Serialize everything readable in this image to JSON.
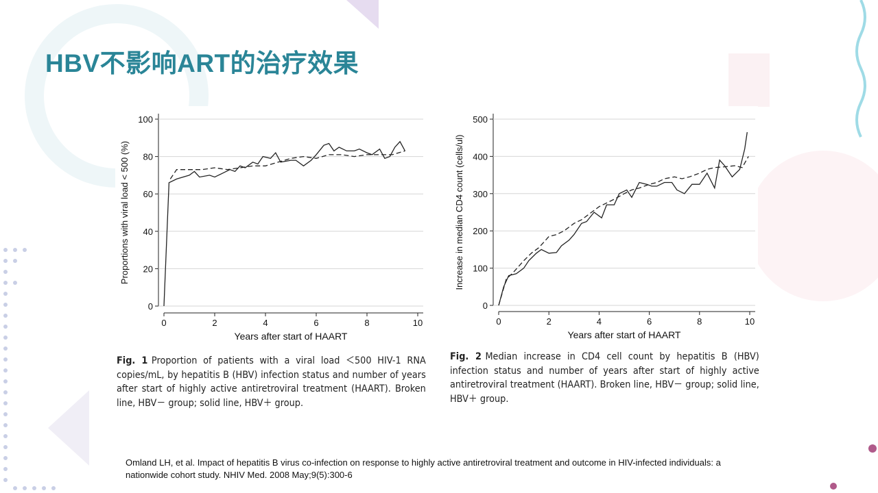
{
  "slide": {
    "title": "HBV不影响ART的治疗效果",
    "reference": "Omland LH, et al. Impact of hepatitis B virus co-infection on response to highly active antiretroviral treatment and outcome in HIV-infected individuals: a nationwide cohort study. NHIV Med. 2008 May;9(5):300-6"
  },
  "chart_data": [
    {
      "type": "line",
      "caption_label": "Fig. 1",
      "caption": "Proportion of patients with a viral load ＜500 HIV-1 RNA copies/mL, by hepatitis B (HBV) infection status and number of years after start of highly active antiretroviral treatment (HAART). Broken line, HBV－ group; solid line, HBV＋ group.",
      "x_label": "Years after start of HAART",
      "y_label": "Proportions with viral load < 500 (%)",
      "xlim": [
        0,
        10
      ],
      "xticks": [
        0,
        2,
        4,
        6,
        8,
        10
      ],
      "ylim": [
        0,
        100
      ],
      "yticks": [
        0,
        20,
        40,
        60,
        80,
        100
      ],
      "series": [
        {
          "color": "#222222",
          "line_style": "solid",
          "x": [
            0,
            0.2,
            0.5,
            1,
            1.2,
            1.4,
            1.8,
            2,
            2.3,
            2.6,
            2.8,
            3,
            3.2,
            3.5,
            3.7,
            3.9,
            4.2,
            4.4,
            4.6,
            5,
            5.2,
            5.5,
            5.8,
            6,
            6.3,
            6.5,
            6.7,
            6.9,
            7.2,
            7.5,
            7.7,
            8,
            8.2,
            8.5,
            8.7,
            8.9,
            9.1,
            9.3,
            9.5
          ],
          "values": [
            0,
            66,
            68,
            70,
            72,
            69,
            70,
            69,
            71,
            73,
            72,
            75,
            74,
            77,
            76,
            80,
            79,
            82,
            77,
            78,
            78,
            75,
            78,
            81,
            86,
            87,
            83,
            85,
            83,
            83,
            84,
            82,
            81,
            84,
            79,
            80,
            85,
            88,
            83
          ]
        },
        {
          "color": "#222222",
          "line_style": "dashed",
          "x": [
            0.25,
            0.5,
            1,
            1.5,
            2,
            2.5,
            3,
            3.5,
            4,
            4.5,
            5,
            5.5,
            6,
            6.5,
            7,
            7.5,
            8,
            8.5,
            9,
            9.5
          ],
          "values": [
            68,
            73,
            73,
            73,
            74,
            73,
            74,
            75,
            75,
            77,
            79,
            80,
            79,
            81,
            81,
            80,
            81,
            81,
            81,
            83
          ]
        }
      ]
    },
    {
      "type": "line",
      "caption_label": "Fig. 2",
      "caption": "Median increase in CD4 cell count by hepatitis B (HBV) infection status and number of years after start of highly active antiretroviral treatment (HAART). Broken line, HBV－ group; solid line, HBV＋ group.",
      "x_label": "Years after start of HAART",
      "y_label": "Increase in median CD4 count (cells/ul)",
      "xlim": [
        0,
        10
      ],
      "xticks": [
        0,
        2,
        4,
        6,
        8,
        10
      ],
      "ylim": [
        0,
        500
      ],
      "yticks": [
        0,
        100,
        200,
        300,
        400,
        500
      ],
      "series": [
        {
          "color": "#222222",
          "line_style": "solid",
          "x": [
            0,
            0.2,
            0.4,
            0.7,
            1,
            1.2,
            1.5,
            1.7,
            2,
            2.3,
            2.5,
            2.8,
            3,
            3.3,
            3.5,
            3.8,
            4.1,
            4.3,
            4.6,
            4.8,
            5.1,
            5.3,
            5.6,
            5.9,
            6.1,
            6.3,
            6.6,
            6.9,
            7.1,
            7.4,
            7.7,
            8,
            8.3,
            8.6,
            8.8,
            9,
            9.3,
            9.6,
            9.8,
            9.9
          ],
          "values": [
            0,
            50,
            80,
            85,
            100,
            120,
            140,
            150,
            140,
            142,
            160,
            175,
            190,
            220,
            225,
            250,
            235,
            270,
            270,
            300,
            310,
            290,
            330,
            325,
            320,
            320,
            330,
            330,
            310,
            300,
            325,
            325,
            355,
            315,
            390,
            375,
            345,
            365,
            420,
            465
          ]
        },
        {
          "color": "#222222",
          "line_style": "dashed",
          "x": [
            0,
            0.3,
            0.6,
            1,
            1.3,
            1.6,
            2,
            2.3,
            2.6,
            3,
            3.3,
            3.6,
            4,
            4.3,
            4.6,
            5,
            5.3,
            5.6,
            6,
            6.3,
            6.6,
            7,
            7.3,
            7.6,
            8,
            8.3,
            8.6,
            9,
            9.4,
            9.7,
            9.95
          ],
          "values": [
            0,
            70,
            90,
            120,
            140,
            155,
            185,
            190,
            200,
            220,
            230,
            245,
            265,
            275,
            285,
            300,
            310,
            315,
            325,
            330,
            340,
            345,
            340,
            345,
            355,
            365,
            370,
            372,
            375,
            370,
            400
          ]
        }
      ]
    }
  ]
}
